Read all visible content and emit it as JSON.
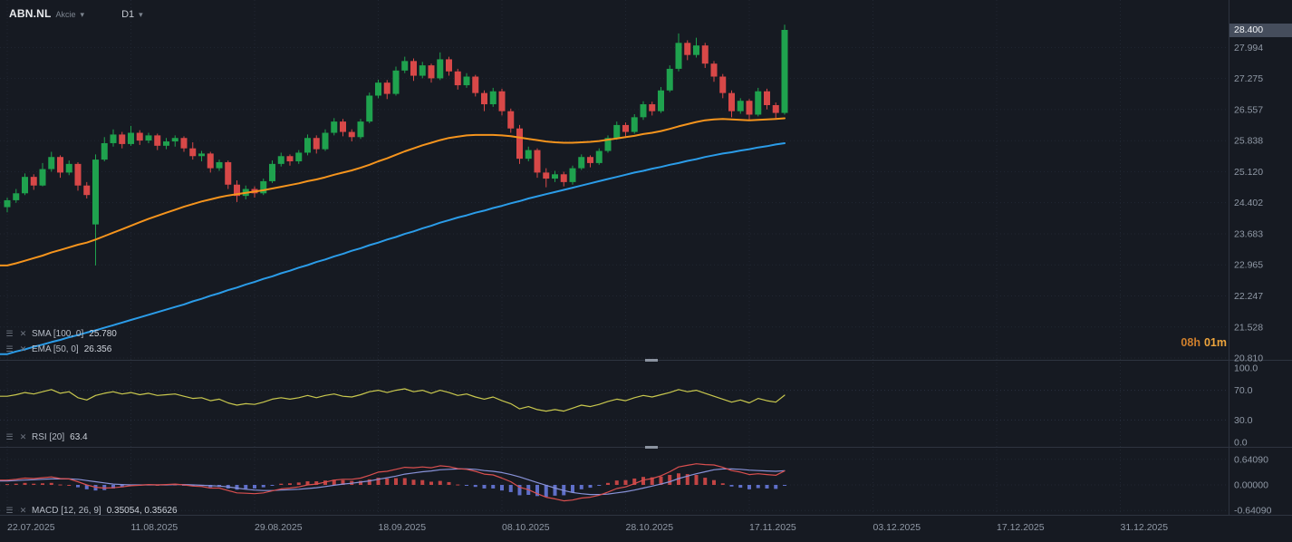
{
  "header": {
    "symbol": "ABN.NL",
    "instrument_type": "Akcie",
    "timeframe": "D1"
  },
  "price_axis": {
    "current": "28.400"
  },
  "countdown": {
    "hours": "08h",
    "minutes": "01m"
  },
  "indicators": {
    "sma": {
      "label": "SMA [100, 0]",
      "value": "25.780"
    },
    "ema": {
      "label": "EMA [50, 0]",
      "value": "26.356"
    },
    "rsi": {
      "label": "RSI [20]",
      "value": "63.4"
    },
    "macd": {
      "label": "MACD [12, 26, 9]",
      "value": "0.35054,  0.35626"
    }
  },
  "icons": {
    "settings": "☰",
    "remove": "✕",
    "caret": "▾"
  },
  "colors": {
    "bg": "#161a22",
    "grid": "#212733",
    "separator": "#2e3440",
    "axis_text": "#9099a6",
    "up": "#1fa24e",
    "down": "#d84848",
    "ema": "#f5941d",
    "sma": "#2b9ce8",
    "rsi": "#c9c84e",
    "macd_line": "#d94f4f",
    "macd_signal": "#8892d8",
    "hist_pos": "#c24444",
    "hist_neg": "#5f6fc9",
    "tag_bg": "#454d5c",
    "countdown": "#eda43c"
  },
  "chart_data": {
    "type": "candlestick",
    "symbol": "ABN.NL",
    "timeframe": "D1",
    "title": "ABN.NL Akcie D1 with SMA(100), EMA(50), RSI(20), MACD(12,26,9)",
    "ylim": [
      20.81,
      28.4
    ],
    "current_price": 28.4,
    "price_ticks": [
      27.994,
      27.275,
      26.557,
      25.838,
      25.12,
      24.402,
      23.683,
      22.965,
      22.247,
      21.528,
      20.81
    ],
    "rsi_ticks": [
      100,
      70,
      30,
      0
    ],
    "macd_ticks": [
      0.6409,
      0,
      -0.6409
    ],
    "date_ticks": [
      {
        "label": "22.07.2025",
        "index": 0
      },
      {
        "label": "11.08.2025",
        "index": 14
      },
      {
        "label": "29.08.2025",
        "index": 28
      },
      {
        "label": "18.09.2025",
        "index": 42
      },
      {
        "label": "08.10.2025",
        "index": 56
      },
      {
        "label": "28.10.2025",
        "index": 70
      },
      {
        "label": "17.11.2025",
        "index": 84
      },
      {
        "label": "03.12.2025",
        "index": 98
      },
      {
        "label": "17.12.2025",
        "index": 112
      },
      {
        "label": "31.12.2025",
        "index": 126
      }
    ],
    "candles": [
      [
        24.3,
        24.52,
        24.18,
        24.46
      ],
      [
        24.46,
        24.72,
        24.4,
        24.62
      ],
      [
        24.62,
        25.08,
        24.58,
        25.0
      ],
      [
        25.0,
        25.06,
        24.7,
        24.8
      ],
      [
        24.8,
        25.32,
        24.78,
        25.18
      ],
      [
        25.18,
        25.58,
        25.12,
        25.46
      ],
      [
        25.46,
        25.5,
        24.98,
        25.1
      ],
      [
        25.1,
        25.38,
        25.04,
        25.3
      ],
      [
        25.3,
        25.34,
        24.68,
        24.8
      ],
      [
        24.8,
        24.88,
        24.5,
        24.58
      ],
      [
        23.9,
        25.52,
        22.95,
        25.4
      ],
      [
        25.4,
        25.92,
        25.36,
        25.78
      ],
      [
        25.78,
        26.1,
        25.7,
        25.98
      ],
      [
        25.98,
        26.04,
        25.66,
        25.76
      ],
      [
        25.76,
        26.18,
        25.72,
        26.02
      ],
      [
        26.02,
        26.08,
        25.74,
        25.84
      ],
      [
        25.84,
        26.02,
        25.78,
        25.96
      ],
      [
        25.96,
        26.0,
        25.62,
        25.72
      ],
      [
        25.72,
        25.9,
        25.64,
        25.82
      ],
      [
        25.82,
        25.96,
        25.7,
        25.9
      ],
      [
        25.9,
        25.94,
        25.58,
        25.66
      ],
      [
        25.66,
        25.8,
        25.4,
        25.48
      ],
      [
        25.48,
        25.6,
        25.36,
        25.54
      ],
      [
        25.54,
        25.58,
        25.1,
        25.2
      ],
      [
        25.2,
        25.4,
        25.14,
        25.34
      ],
      [
        25.34,
        25.38,
        24.72,
        24.82
      ],
      [
        24.82,
        24.92,
        24.42,
        24.56
      ],
      [
        24.56,
        24.8,
        24.48,
        24.72
      ],
      [
        24.72,
        24.78,
        24.52,
        24.62
      ],
      [
        24.62,
        24.96,
        24.58,
        24.9
      ],
      [
        24.9,
        25.38,
        24.86,
        25.3
      ],
      [
        25.3,
        25.56,
        25.24,
        25.48
      ],
      [
        25.48,
        25.52,
        25.26,
        25.36
      ],
      [
        25.36,
        25.62,
        25.3,
        25.56
      ],
      [
        25.56,
        25.98,
        25.5,
        25.9
      ],
      [
        25.9,
        25.96,
        25.54,
        25.64
      ],
      [
        25.64,
        26.1,
        25.6,
        26.02
      ],
      [
        26.02,
        26.36,
        25.96,
        26.28
      ],
      [
        26.28,
        26.34,
        25.94,
        26.04
      ],
      [
        26.04,
        26.1,
        25.82,
        25.92
      ],
      [
        25.92,
        26.34,
        25.88,
        26.28
      ],
      [
        26.28,
        26.95,
        26.24,
        26.88
      ],
      [
        26.88,
        27.25,
        26.82,
        27.18
      ],
      [
        27.18,
        27.24,
        26.8,
        26.92
      ],
      [
        26.92,
        27.55,
        26.88,
        27.46
      ],
      [
        27.46,
        27.78,
        27.4,
        27.68
      ],
      [
        27.68,
        27.74,
        27.22,
        27.34
      ],
      [
        27.34,
        27.66,
        27.28,
        27.58
      ],
      [
        27.58,
        27.62,
        27.18,
        27.28
      ],
      [
        27.28,
        27.88,
        27.24,
        27.72
      ],
      [
        27.72,
        27.78,
        27.34,
        27.44
      ],
      [
        27.44,
        27.5,
        27.02,
        27.12
      ],
      [
        27.12,
        27.4,
        27.06,
        27.32
      ],
      [
        27.32,
        27.36,
        26.86,
        26.94
      ],
      [
        26.94,
        27.0,
        26.52,
        26.68
      ],
      [
        26.68,
        27.06,
        26.62,
        26.98
      ],
      [
        26.98,
        27.04,
        26.42,
        26.52
      ],
      [
        26.52,
        26.58,
        26.02,
        26.12
      ],
      [
        26.12,
        26.2,
        25.3,
        25.42
      ],
      [
        25.42,
        25.7,
        25.36,
        25.62
      ],
      [
        25.62,
        25.66,
        24.98,
        25.1
      ],
      [
        25.1,
        25.2,
        24.76,
        24.96
      ],
      [
        24.96,
        25.14,
        24.88,
        25.06
      ],
      [
        25.06,
        25.12,
        24.78,
        24.88
      ],
      [
        24.88,
        25.26,
        24.82,
        25.2
      ],
      [
        25.2,
        25.52,
        25.16,
        25.46
      ],
      [
        25.46,
        25.5,
        25.22,
        25.32
      ],
      [
        25.32,
        25.66,
        25.28,
        25.6
      ],
      [
        25.6,
        25.96,
        25.56,
        25.9
      ],
      [
        25.9,
        26.28,
        25.86,
        26.2
      ],
      [
        26.2,
        26.26,
        25.94,
        26.04
      ],
      [
        26.04,
        26.45,
        26.0,
        26.38
      ],
      [
        26.38,
        26.75,
        26.32,
        26.68
      ],
      [
        26.68,
        26.74,
        26.42,
        26.52
      ],
      [
        26.52,
        27.08,
        26.48,
        27.0
      ],
      [
        27.0,
        27.58,
        26.96,
        27.5
      ],
      [
        27.5,
        28.32,
        27.44,
        28.1
      ],
      [
        28.1,
        28.16,
        27.7,
        27.82
      ],
      [
        27.82,
        28.22,
        27.76,
        28.04
      ],
      [
        28.04,
        28.1,
        27.52,
        27.62
      ],
      [
        27.62,
        27.68,
        27.2,
        27.32
      ],
      [
        27.32,
        27.38,
        26.82,
        26.94
      ],
      [
        26.94,
        27.0,
        26.38,
        26.52
      ],
      [
        26.52,
        26.82,
        26.46,
        26.76
      ],
      [
        26.76,
        26.8,
        26.3,
        26.44
      ],
      [
        26.44,
        27.06,
        26.4,
        26.98
      ],
      [
        26.98,
        27.04,
        26.56,
        26.66
      ],
      [
        26.66,
        26.72,
        26.36,
        26.48
      ],
      [
        26.48,
        28.52,
        26.44,
        28.4
      ]
    ],
    "overlays": {
      "ema50": [
        22.95,
        23.0,
        23.06,
        23.12,
        23.18,
        23.25,
        23.31,
        23.37,
        23.43,
        23.48,
        23.55,
        23.63,
        23.71,
        23.79,
        23.87,
        23.95,
        24.03,
        24.1,
        24.17,
        24.24,
        24.31,
        24.37,
        24.43,
        24.48,
        24.53,
        24.57,
        24.6,
        24.63,
        24.66,
        24.69,
        24.73,
        24.77,
        24.81,
        24.85,
        24.9,
        24.94,
        24.99,
        25.05,
        25.1,
        25.15,
        25.21,
        25.28,
        25.36,
        25.43,
        25.51,
        25.59,
        25.66,
        25.73,
        25.79,
        25.85,
        25.9,
        25.93,
        25.96,
        25.97,
        25.97,
        25.97,
        25.96,
        25.94,
        25.91,
        25.88,
        25.85,
        25.82,
        25.8,
        25.79,
        25.79,
        25.8,
        25.81,
        25.83,
        25.86,
        25.89,
        25.92,
        25.95,
        25.99,
        26.02,
        26.06,
        26.11,
        26.17,
        26.22,
        26.27,
        26.31,
        26.33,
        26.34,
        26.33,
        26.32,
        26.31,
        26.32,
        26.33,
        26.34,
        26.356
      ],
      "sma100": [
        20.9,
        20.96,
        21.01,
        21.07,
        21.12,
        21.18,
        21.23,
        21.29,
        21.34,
        21.4,
        21.45,
        21.51,
        21.57,
        21.63,
        21.69,
        21.75,
        21.81,
        21.87,
        21.93,
        21.99,
        22.05,
        22.12,
        22.18,
        22.25,
        22.31,
        22.38,
        22.44,
        22.51,
        22.57,
        22.64,
        22.7,
        22.77,
        22.83,
        22.9,
        22.96,
        23.03,
        23.09,
        23.16,
        23.22,
        23.29,
        23.35,
        23.42,
        23.48,
        23.55,
        23.61,
        23.68,
        23.74,
        23.81,
        23.87,
        23.94,
        24.0,
        24.06,
        24.11,
        24.17,
        24.22,
        24.28,
        24.33,
        24.39,
        24.44,
        24.5,
        24.55,
        24.6,
        24.65,
        24.7,
        24.75,
        24.8,
        24.85,
        24.9,
        24.95,
        25.0,
        25.05,
        25.1,
        25.14,
        25.19,
        25.23,
        25.28,
        25.32,
        25.37,
        25.41,
        25.46,
        25.5,
        25.54,
        25.57,
        25.61,
        25.64,
        25.68,
        25.71,
        25.75,
        25.78
      ]
    },
    "rsi20": [
      62,
      64,
      67,
      65,
      68,
      71,
      66,
      68,
      60,
      57,
      63,
      66,
      68,
      65,
      67,
      64,
      66,
      63,
      64,
      65,
      62,
      59,
      60,
      56,
      58,
      53,
      50,
      52,
      51,
      54,
      58,
      60,
      58,
      60,
      63,
      60,
      63,
      65,
      62,
      61,
      64,
      68,
      70,
      67,
      70,
      72,
      68,
      70,
      66,
      70,
      67,
      63,
      65,
      61,
      58,
      61,
      56,
      52,
      45,
      48,
      44,
      42,
      44,
      42,
      46,
      50,
      48,
      51,
      55,
      58,
      56,
      60,
      63,
      61,
      64,
      67,
      71,
      68,
      70,
      66,
      62,
      58,
      54,
      57,
      53,
      59,
      56,
      54,
      63.4
    ],
    "macd": {
      "macd": [
        0.12,
        0.14,
        0.17,
        0.16,
        0.18,
        0.2,
        0.16,
        0.15,
        0.08,
        0.0,
        -0.06,
        -0.08,
        -0.07,
        -0.05,
        -0.02,
        -0.01,
        0.01,
        0.0,
        0.01,
        0.02,
        0.0,
        -0.03,
        -0.04,
        -0.08,
        -0.08,
        -0.14,
        -0.2,
        -0.21,
        -0.22,
        -0.2,
        -0.15,
        -0.1,
        -0.08,
        -0.05,
        0.0,
        0.02,
        0.07,
        0.12,
        0.14,
        0.14,
        0.17,
        0.24,
        0.32,
        0.34,
        0.39,
        0.44,
        0.43,
        0.45,
        0.43,
        0.48,
        0.46,
        0.41,
        0.39,
        0.34,
        0.27,
        0.25,
        0.17,
        0.08,
        -0.06,
        -0.12,
        -0.22,
        -0.31,
        -0.35,
        -0.4,
        -0.38,
        -0.33,
        -0.31,
        -0.26,
        -0.18,
        -0.09,
        -0.05,
        0.03,
        0.12,
        0.16,
        0.23,
        0.33,
        0.45,
        0.49,
        0.53,
        0.51,
        0.5,
        0.44,
        0.36,
        0.32,
        0.26,
        0.28,
        0.26,
        0.24,
        0.35054
      ],
      "signal": [
        0.1,
        0.11,
        0.12,
        0.13,
        0.14,
        0.15,
        0.15,
        0.15,
        0.14,
        0.11,
        0.08,
        0.05,
        0.02,
        0.01,
        0.0,
        0.0,
        0.0,
        0.0,
        0.0,
        0.01,
        0.01,
        0.0,
        -0.01,
        -0.02,
        -0.03,
        -0.05,
        -0.08,
        -0.11,
        -0.13,
        -0.14,
        -0.14,
        -0.13,
        -0.12,
        -0.11,
        -0.09,
        -0.07,
        -0.04,
        -0.01,
        0.02,
        0.04,
        0.07,
        0.1,
        0.14,
        0.18,
        0.22,
        0.27,
        0.3,
        0.33,
        0.35,
        0.38,
        0.39,
        0.4,
        0.4,
        0.39,
        0.36,
        0.34,
        0.31,
        0.26,
        0.2,
        0.13,
        0.06,
        -0.01,
        -0.08,
        -0.14,
        -0.19,
        -0.22,
        -0.24,
        -0.24,
        -0.23,
        -0.2,
        -0.17,
        -0.13,
        -0.08,
        -0.03,
        0.02,
        0.08,
        0.16,
        0.22,
        0.28,
        0.33,
        0.38,
        0.4,
        0.4,
        0.39,
        0.37,
        0.36,
        0.35,
        0.34,
        0.35626
      ],
      "hist": [
        0.02,
        0.03,
        0.05,
        0.03,
        0.04,
        0.05,
        0.01,
        0.0,
        -0.06,
        -0.11,
        -0.14,
        -0.13,
        -0.09,
        -0.06,
        -0.02,
        -0.01,
        0.01,
        0.0,
        0.01,
        0.01,
        -0.01,
        -0.03,
        -0.03,
        -0.06,
        -0.05,
        -0.09,
        -0.12,
        -0.1,
        -0.09,
        -0.06,
        -0.01,
        0.03,
        0.04,
        0.06,
        0.09,
        0.09,
        0.11,
        0.13,
        0.12,
        0.1,
        0.1,
        0.14,
        0.18,
        0.16,
        0.17,
        0.17,
        0.13,
        0.12,
        0.08,
        0.1,
        0.07,
        0.01,
        -0.01,
        -0.05,
        -0.09,
        -0.09,
        -0.14,
        -0.18,
        -0.26,
        -0.25,
        -0.28,
        -0.3,
        -0.27,
        -0.26,
        -0.19,
        -0.11,
        -0.07,
        -0.02,
        0.05,
        0.11,
        0.12,
        0.16,
        0.2,
        0.19,
        0.21,
        0.25,
        0.29,
        0.27,
        0.25,
        0.18,
        0.12,
        0.04,
        -0.04,
        -0.07,
        -0.11,
        -0.08,
        -0.09,
        -0.1,
        -0.0057
      ]
    }
  }
}
